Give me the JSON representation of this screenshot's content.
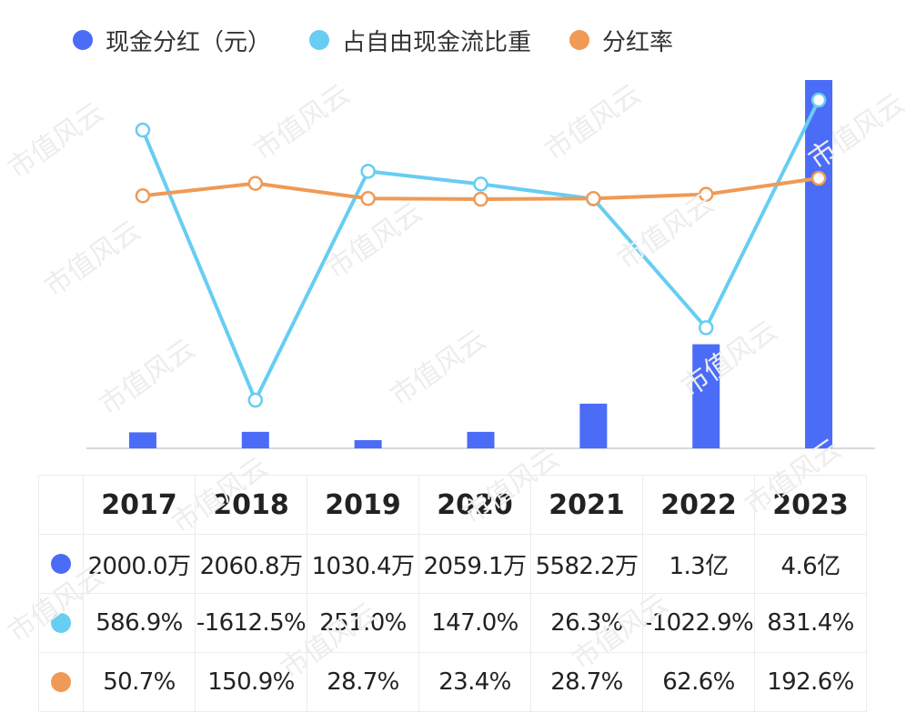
{
  "chart_data": {
    "type": "bar",
    "categories": [
      "2017",
      "2018",
      "2019",
      "2020",
      "2021",
      "2022",
      "2023"
    ],
    "series": [
      {
        "name": "现金分红（元）",
        "type": "bar",
        "color": "#4a6cf7",
        "values": [
          20000000,
          20608000,
          10304000,
          20591000,
          55822000,
          130000000,
          460000000
        ],
        "display": [
          "2000.0万",
          "2060.8万",
          "1030.4万",
          "2059.1万",
          "5582.2万",
          "1.3亿",
          "4.6亿"
        ]
      },
      {
        "name": "占自由现金流比重",
        "type": "line",
        "color": "#67cdf2",
        "values": [
          586.9,
          -1612.5,
          251.0,
          147.0,
          26.3,
          -1022.9,
          831.4
        ],
        "display": [
          "586.9%",
          "-1612.5%",
          "251.0%",
          "147.0%",
          "26.3%",
          "-1022.9%",
          "831.4%"
        ]
      },
      {
        "name": "分红率",
        "type": "line",
        "color": "#ef9a56",
        "values": [
          50.7,
          150.9,
          28.7,
          23.4,
          28.7,
          62.6,
          192.6
        ],
        "display": [
          "50.7%",
          "150.9%",
          "28.7%",
          "23.4%",
          "28.7%",
          "62.6%",
          "192.6%"
        ]
      }
    ],
    "legend_position": "top-left",
    "grid": false
  },
  "watermark": "市值风云"
}
